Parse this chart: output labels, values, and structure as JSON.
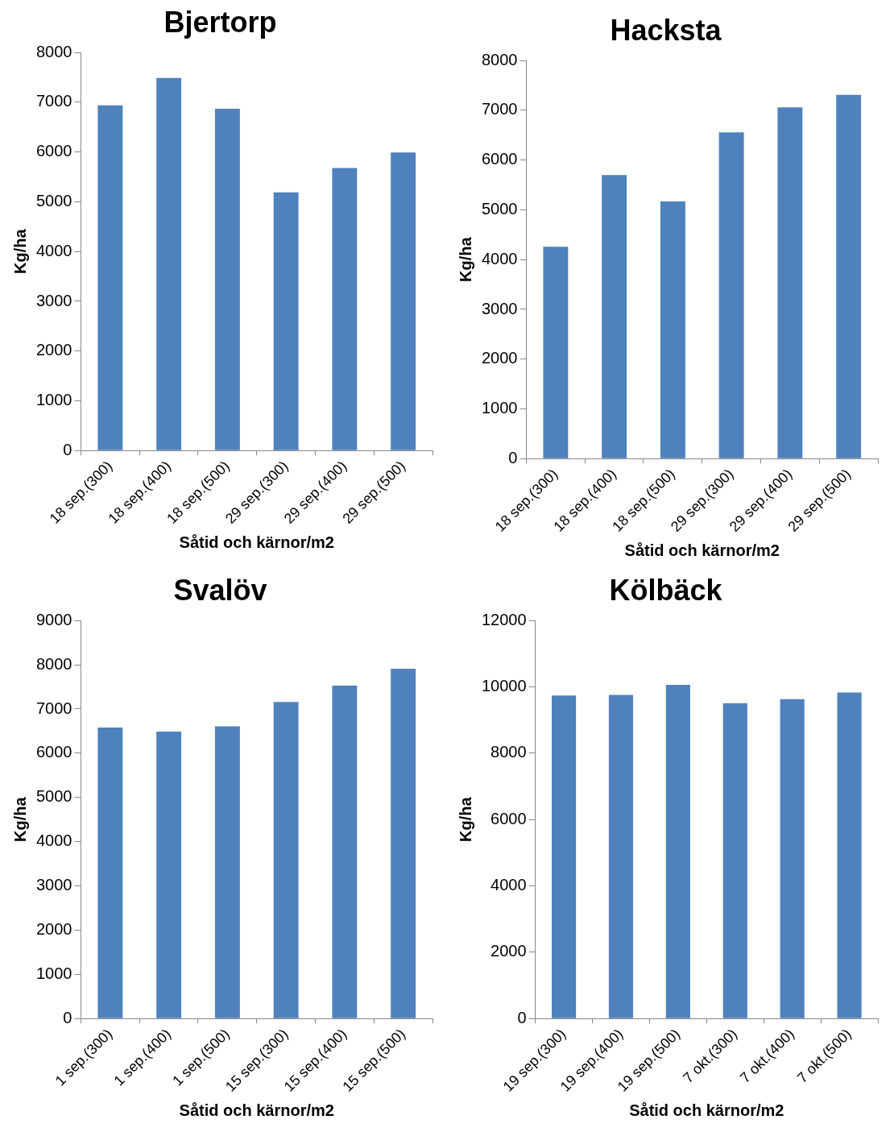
{
  "chart_data": [
    {
      "type": "bar",
      "title": "Bjertorp",
      "xlabel": "Såtid och kärnor/m2",
      "ylabel": "Kg/ha",
      "categories": [
        "18 sep.(300)",
        "18 sep.(400)",
        "18 sep.(500)",
        "29 sep.(300)",
        "29 sep.(400)",
        "29 sep.(500)"
      ],
      "values": [
        6940,
        7490,
        6870,
        5190,
        5680,
        5990
      ],
      "color": "#4f81bd",
      "ylim": [
        0,
        8000
      ],
      "yticks": [
        0,
        1000,
        2000,
        3000,
        4000,
        5000,
        6000,
        7000,
        8000
      ],
      "grid": false,
      "legend": false
    },
    {
      "type": "bar",
      "title": "Hacksta",
      "xlabel": "Såtid och kärnor/m2",
      "ylabel": "Kg/ha",
      "categories": [
        "18 sep.(300)",
        "18 sep.(400)",
        "18 sep.(500)",
        "29 sep.(300)",
        "29 sep.(400)",
        "29 sep.(500)"
      ],
      "values": [
        4260,
        5700,
        5170,
        6560,
        7060,
        7310
      ],
      "color": "#4f81bd",
      "ylim": [
        0,
        8000
      ],
      "yticks": [
        0,
        1000,
        2000,
        3000,
        4000,
        5000,
        6000,
        7000,
        8000
      ],
      "grid": false,
      "legend": false
    },
    {
      "type": "bar",
      "title": "Svalöv",
      "xlabel": "Såtid och kärnor/m2",
      "ylabel": "Kg/ha",
      "categories": [
        "1 sep.(300)",
        "1 sep.(400)",
        "1 sep.(500)",
        "15 sep.(300)",
        "15 sep.(400)",
        "15 sep.(500)"
      ],
      "values": [
        6580,
        6490,
        6610,
        7160,
        7530,
        7910
      ],
      "color": "#4f81bd",
      "ylim": [
        0,
        9000
      ],
      "yticks": [
        0,
        1000,
        2000,
        3000,
        4000,
        5000,
        6000,
        7000,
        8000,
        9000
      ],
      "grid": false,
      "legend": false
    },
    {
      "type": "bar",
      "title": "Kölbäck",
      "xlabel": "Såtid och kärnor/m2",
      "ylabel": "Kg/ha",
      "categories": [
        "19 sep.(300)",
        "19 sep.(400)",
        "19 sep.(500)",
        "7 okt.(300)",
        "7 okt.(400)",
        "7 okt.(500)"
      ],
      "values": [
        9740,
        9760,
        10060,
        9510,
        9630,
        9830
      ],
      "color": "#4f81bd",
      "ylim": [
        0,
        12000
      ],
      "yticks": [
        0,
        2000,
        4000,
        6000,
        8000,
        10000,
        12000
      ],
      "grid": false,
      "legend": false
    }
  ]
}
